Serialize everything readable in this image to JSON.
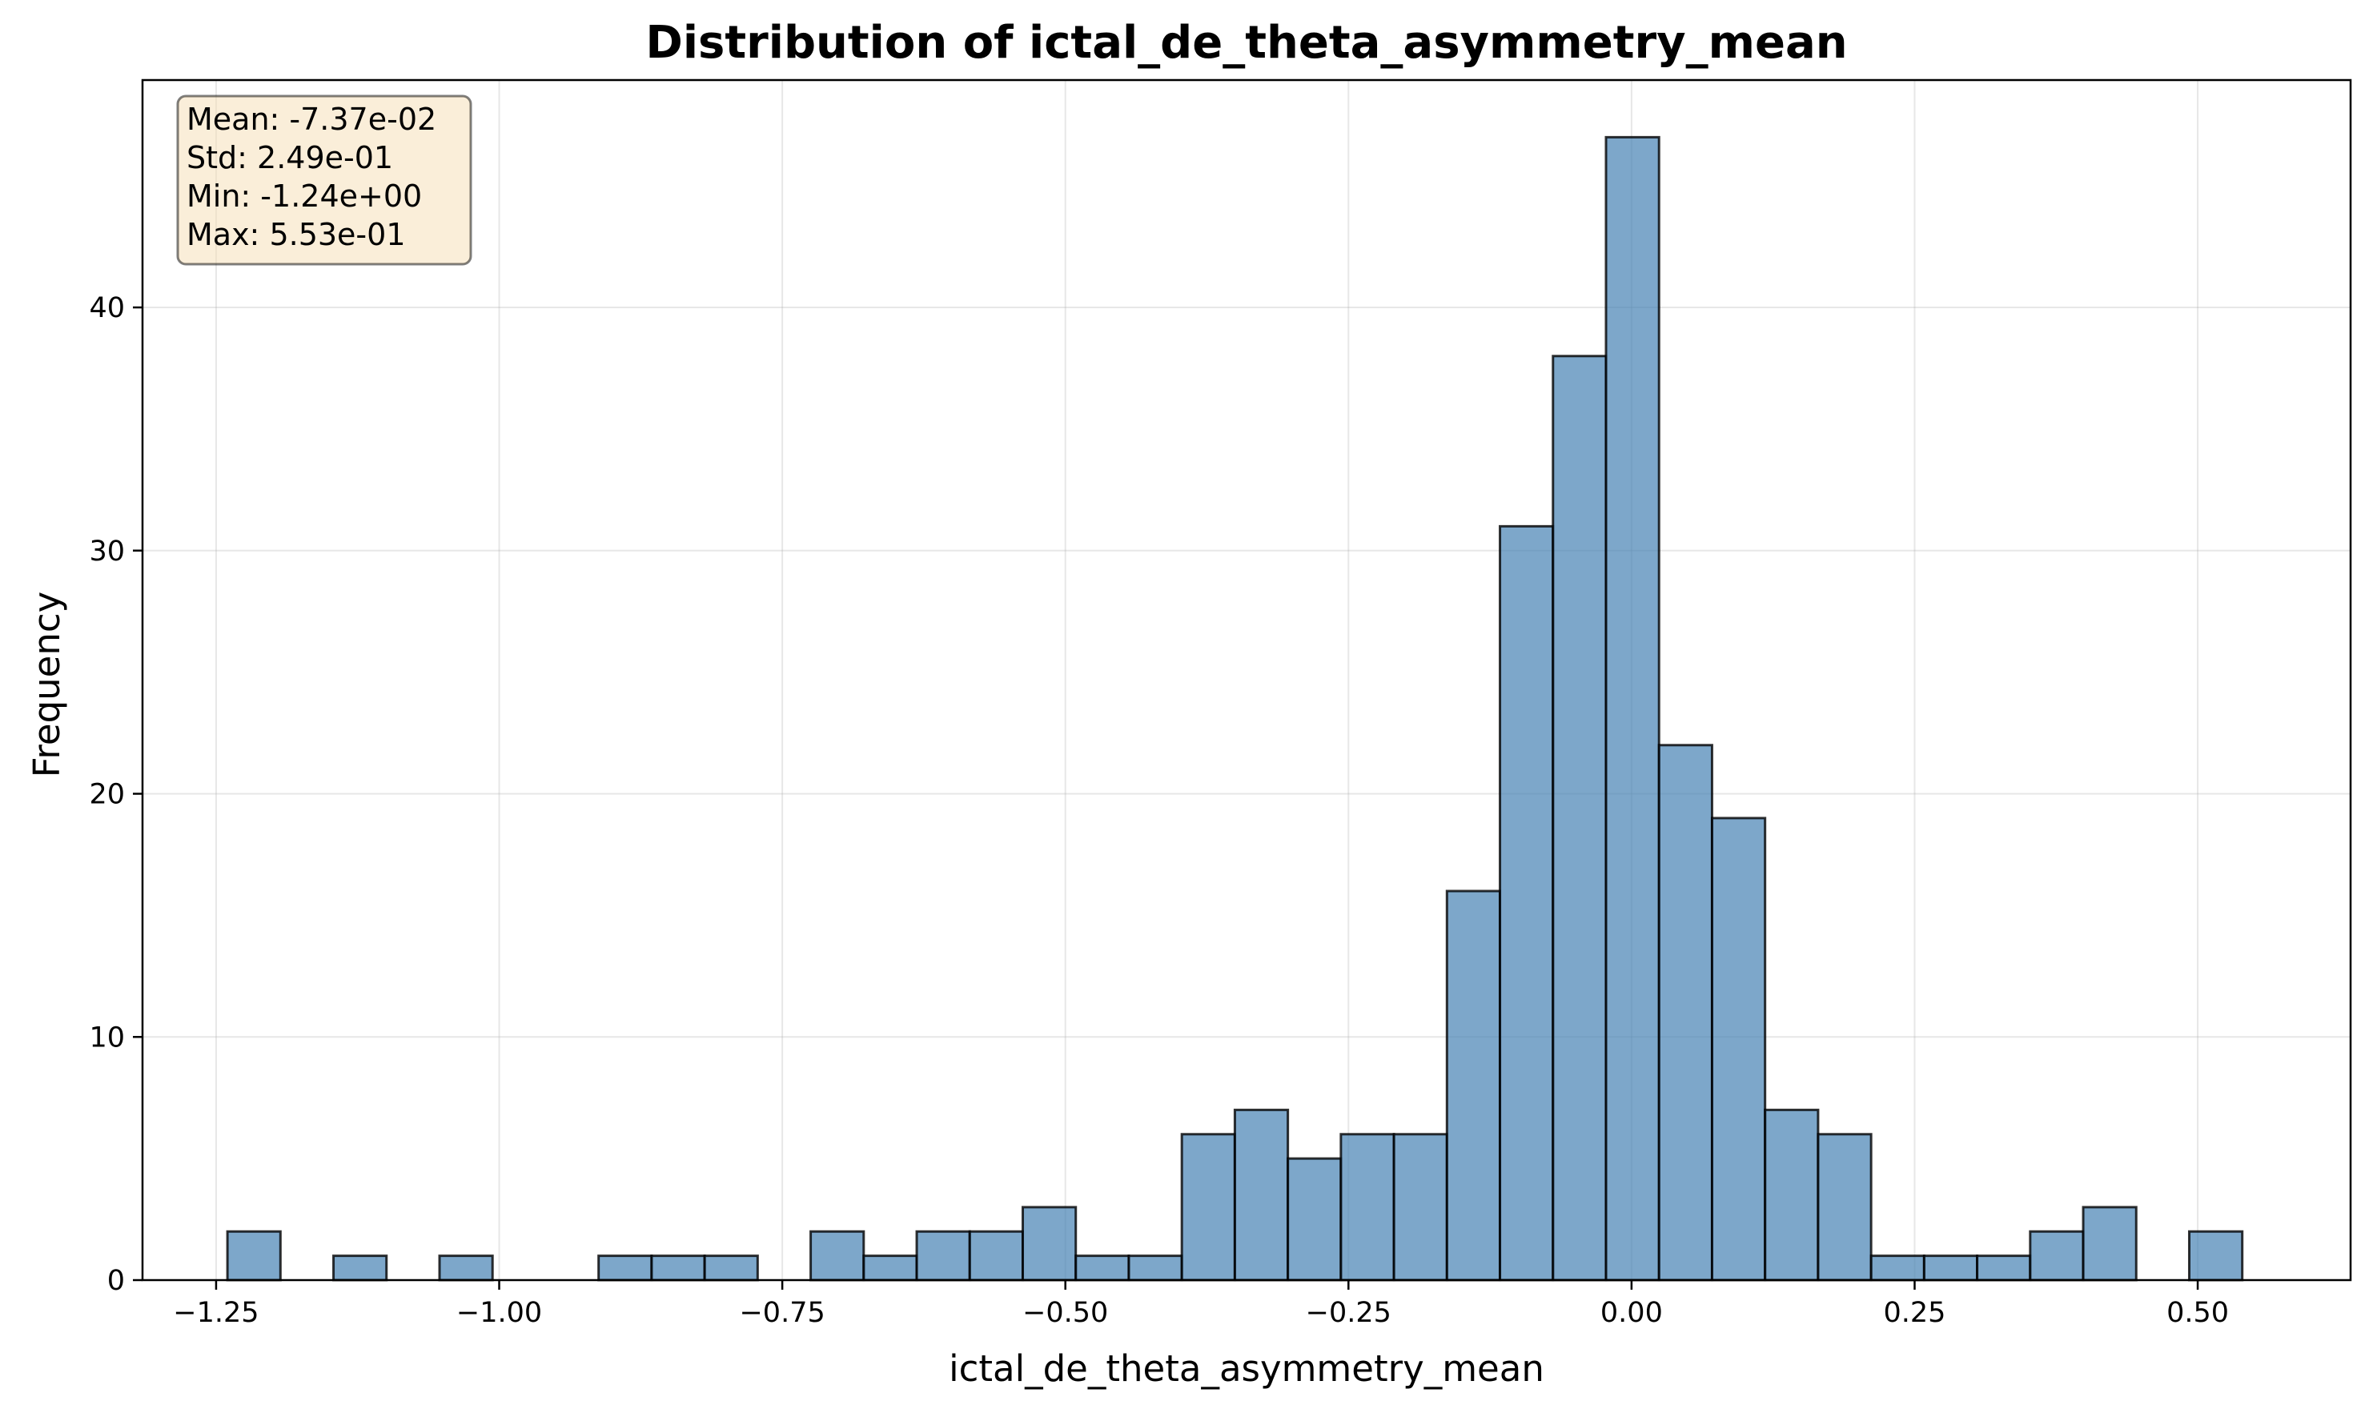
{
  "chart_data": {
    "type": "bar",
    "title": "Distribution of ictal_de_theta_asymmetry_mean",
    "xlabel": "ictal_de_theta_asymmetry_mean",
    "ylabel": "Frequency",
    "xlim": [
      -1.315,
      0.635
    ],
    "ylim": [
      0,
      49.35
    ],
    "x_ticks": [
      -1.25,
      -1.0,
      -0.75,
      -0.5,
      -0.25,
      0.0,
      0.25,
      0.5
    ],
    "x_tick_labels": [
      "−1.25",
      "−1.00",
      "−0.75",
      "−0.50",
      "−0.25",
      "0.00",
      "0.25",
      "0.50"
    ],
    "y_ticks": [
      0,
      10,
      20,
      30,
      40
    ],
    "y_tick_labels": [
      "0",
      "10",
      "20",
      "30",
      "40"
    ],
    "bin_start": -1.24,
    "bin_width": 0.046825,
    "values": [
      2,
      0,
      1,
      0,
      1,
      0,
      0,
      1,
      1,
      1,
      0,
      2,
      1,
      2,
      2,
      3,
      1,
      1,
      6,
      7,
      5,
      6,
      6,
      16,
      31,
      38,
      47,
      22,
      19,
      7,
      6,
      1,
      1,
      1,
      2,
      3,
      0,
      2
    ],
    "grid": true,
    "colors": {
      "bar_fill": "#4682b4",
      "bar_edge": "#000000",
      "grid": "#b0b0b0",
      "stats_box_fill": "#f5deb3",
      "stats_box_edge": "#000000"
    },
    "stats_box": {
      "position": "top-left",
      "lines": [
        "Mean: -7.37e-02",
        "Std: 2.49e-01",
        "Min: -1.24e+00",
        "Max: 5.53e-01"
      ]
    }
  }
}
